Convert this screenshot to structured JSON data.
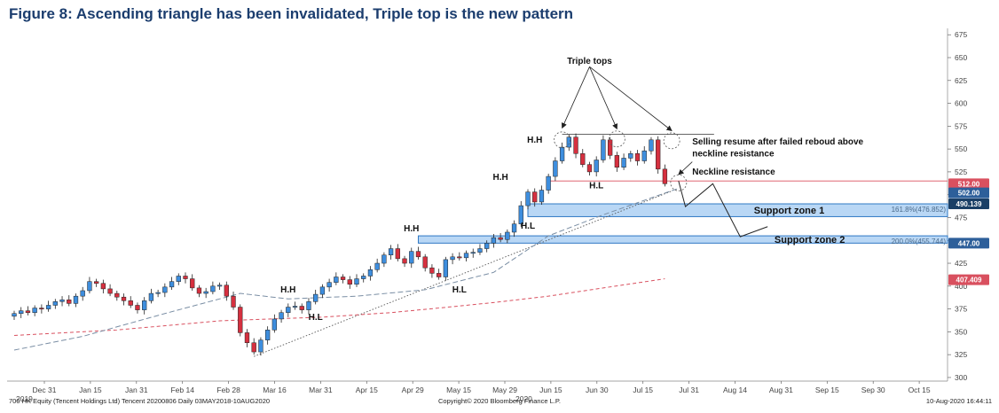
{
  "title": "Figure 8: Ascending triangle has been invalidated, Triple top is the new pattern",
  "chart_data": {
    "type": "candlestick",
    "y_ticks": [
      300,
      325,
      350,
      375,
      400,
      425,
      450,
      475,
      500,
      525,
      550,
      575,
      600,
      625,
      650,
      675
    ],
    "ylim": [
      298,
      682
    ],
    "x_labels": [
      "Dec 31",
      "Jan 15",
      "Jan 31",
      "Feb 14",
      "Feb 28",
      "Mar 16",
      "Mar 31",
      "Apr 15",
      "Apr 29",
      "May 15",
      "May 29",
      "Jun 15",
      "Jun 30",
      "Jul 15",
      "Jul 31",
      "Aug 14",
      "Aug 31",
      "Sep 15",
      "Sep 30",
      "Oct 15"
    ],
    "x_sublabels": [
      {
        "text": "2019",
        "at": "Dec 31"
      },
      {
        "text": "2020",
        "at": "May 29"
      }
    ],
    "closes": [
      370,
      373,
      371,
      376,
      375,
      379,
      383,
      385,
      381,
      389,
      395,
      405,
      403,
      397,
      392,
      388,
      384,
      379,
      374,
      384,
      392,
      393,
      399,
      405,
      411,
      408,
      398,
      392,
      394,
      400,
      401,
      389,
      377,
      349,
      338,
      328,
      341,
      352,
      364,
      371,
      377,
      378,
      374,
      383,
      391,
      399,
      404,
      410,
      407,
      402,
      408,
      411,
      418,
      425,
      434,
      441,
      430,
      425,
      438,
      432,
      420,
      414,
      410,
      429,
      432,
      431,
      436,
      437,
      441,
      447,
      453,
      451,
      459,
      468,
      488,
      503,
      492,
      505,
      520,
      537,
      552,
      563,
      545,
      533,
      525,
      538,
      560,
      543,
      530,
      540,
      545,
      537,
      548,
      560,
      528,
      512
    ],
    "ma_long": [
      [
        0,
        346
      ],
      [
        15,
        352
      ],
      [
        30,
        362
      ],
      [
        45,
        366
      ],
      [
        55,
        371
      ],
      [
        62,
        376
      ],
      [
        70,
        382
      ],
      [
        78,
        389
      ],
      [
        86,
        398
      ],
      [
        95,
        408
      ]
    ],
    "ma_short": [
      [
        0,
        330
      ],
      [
        10,
        345
      ],
      [
        22,
        370
      ],
      [
        33,
        392
      ],
      [
        40,
        386
      ],
      [
        50,
        389
      ],
      [
        60,
        396
      ],
      [
        70,
        415
      ],
      [
        78,
        455
      ],
      [
        86,
        478
      ],
      [
        97,
        507
      ]
    ],
    "trendline": {
      "from": [
        35,
        323
      ],
      "to": [
        96,
        504
      ]
    },
    "neckline": {
      "from": [
        78,
        515
      ],
      "to": [
        107,
        515
      ]
    },
    "triple_top_line": {
      "from": [
        80,
        566
      ],
      "to": [
        97,
        566
      ]
    },
    "projection": [
      [
        97,
        515
      ],
      [
        98,
        487
      ],
      [
        102,
        512
      ],
      [
        106,
        454
      ],
      [
        110,
        465
      ]
    ],
    "zones": [
      {
        "name": "Support zone 1",
        "low": 476,
        "high": 490,
        "from": 75,
        "fib_label": "161.8%(476.852)"
      },
      {
        "name": "Support zone 2",
        "low": 447,
        "high": 455,
        "from": 59,
        "fib_label": "200.0%(455.744)"
      }
    ],
    "price_tags": [
      {
        "value": "512.00",
        "price": 512,
        "color": "#d9505f"
      },
      {
        "value": "502.00",
        "price": 502,
        "color": "#2d5f9a"
      },
      {
        "value": "490.139",
        "price": 490,
        "color": "#1a3f66"
      },
      {
        "value": "447.00",
        "price": 447,
        "color": "#2d5f9a"
      },
      {
        "value": "407.409",
        "price": 407,
        "color": "#d9505f"
      }
    ],
    "annotations": [
      {
        "text": "Triple tops",
        "x": 84,
        "price": 643
      },
      {
        "text": "H.H",
        "x": 76,
        "price": 557
      },
      {
        "text": "H.L",
        "x": 85,
        "price": 507
      },
      {
        "text": "H.H",
        "x": 71,
        "price": 516
      },
      {
        "text": "H.L",
        "x": 75,
        "price": 463
      },
      {
        "text": "H.H",
        "x": 58,
        "price": 460
      },
      {
        "text": "H.L",
        "x": 65,
        "price": 393
      },
      {
        "text": "H.H",
        "x": 40,
        "price": 393
      },
      {
        "text": "H.L",
        "x": 44,
        "price": 363
      },
      {
        "text": "Selling resume after failed reboud above",
        "x": 99,
        "price": 555
      },
      {
        "text": "neckline resistance",
        "x": 99,
        "price": 542
      },
      {
        "text": "Neckline resistance",
        "x": 99,
        "price": 522
      }
    ]
  },
  "footer": {
    "left": "700 HK Equity (Tencent Holdings Ltd) Tencent 20200806  Daily 03MAY2018-10AUG2020",
    "center": "Copyright© 2020 Bloomberg Finance L.P.",
    "right": "10-Aug-2020 16:44:11"
  }
}
